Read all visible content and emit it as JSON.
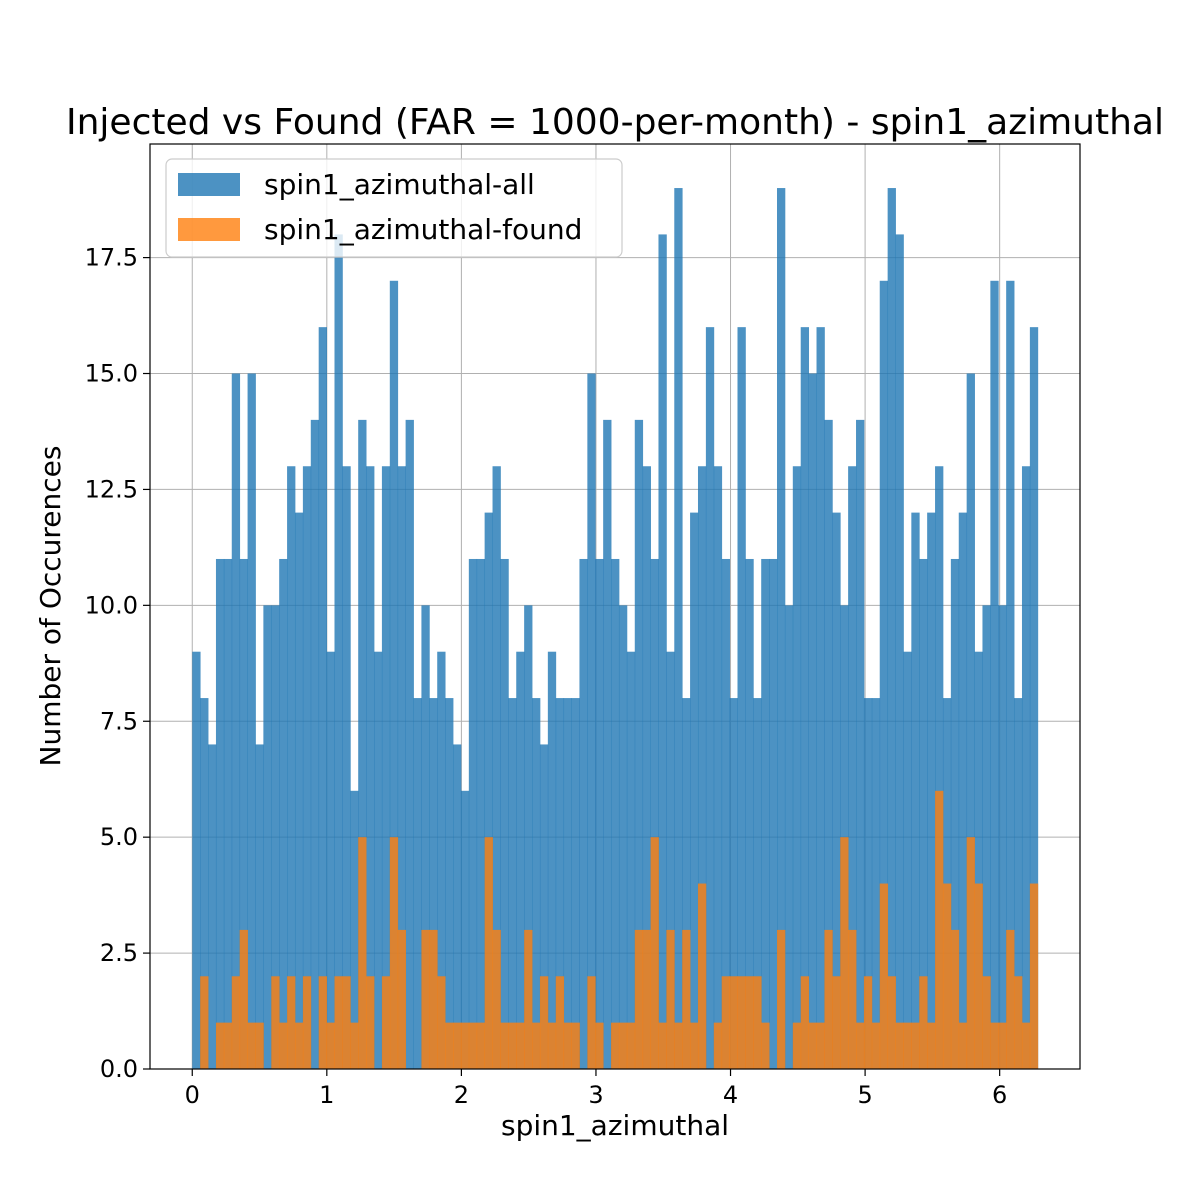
{
  "chart_data": {
    "type": "bar",
    "title": "Injected vs Found (FAR = 1000-per-month) - spin1_azimuthal",
    "xlabel": "spin1_azimuthal",
    "ylabel": "Number of Occurences",
    "xlim": [
      -0.314,
      6.597
    ],
    "ylim": [
      0,
      19.95
    ],
    "xticks": [
      0,
      1,
      2,
      3,
      4,
      5,
      6
    ],
    "xtick_labels": [
      "0",
      "1",
      "2",
      "3",
      "4",
      "5",
      "6"
    ],
    "yticks": [
      0,
      2.5,
      5,
      7.5,
      10,
      12.5,
      15,
      17.5
    ],
    "ytick_labels": [
      "0.0",
      "2.5",
      "5.0",
      "7.5",
      "10.0",
      "12.5",
      "15.0",
      "17.5"
    ],
    "grid": true,
    "legend_position": "upper-left",
    "bin_range": [
      0,
      6.2832
    ],
    "series": [
      {
        "name": "spin1_azimuthal-all",
        "color": "#1f77b4",
        "values": [
          9,
          8,
          7,
          11,
          11,
          15,
          11,
          15,
          7,
          10,
          10,
          11,
          13,
          12,
          13,
          14,
          16,
          9,
          18,
          13,
          6,
          14,
          13,
          9,
          13,
          17,
          13,
          14,
          8,
          10,
          8,
          9,
          8,
          7,
          6,
          11,
          11,
          12,
          13,
          11,
          8,
          9,
          10,
          8,
          7,
          9,
          8,
          8,
          8,
          11,
          15,
          11,
          14,
          11,
          10,
          9,
          14,
          13,
          11,
          18,
          9,
          19,
          8,
          12,
          13,
          16,
          13,
          11,
          8,
          16,
          11,
          8,
          11,
          11,
          19,
          10,
          13,
          16,
          15,
          16,
          14,
          12,
          10,
          13,
          14,
          8,
          8,
          17,
          19,
          18,
          9,
          12,
          11,
          12,
          13,
          8,
          11,
          12,
          15,
          9,
          10,
          17,
          10,
          17,
          8,
          13,
          16
        ],
        "opacity": 0.8
      },
      {
        "name": "spin1_azimuthal-found",
        "color": "#ff7f0e",
        "values": [
          0,
          2,
          0,
          1,
          1,
          2,
          3,
          1,
          1,
          0,
          2,
          1,
          2,
          1,
          2,
          0,
          2,
          1,
          2,
          2,
          1,
          5,
          2,
          0,
          2,
          5,
          3,
          0,
          0,
          3,
          3,
          2,
          1,
          1,
          1,
          1,
          1,
          5,
          3,
          1,
          1,
          1,
          3,
          1,
          2,
          1,
          2,
          1,
          1,
          0,
          2,
          1,
          0,
          1,
          1,
          1,
          3,
          3,
          5,
          1,
          3,
          1,
          3,
          1,
          4,
          0,
          1,
          2,
          2,
          2,
          2,
          2,
          1,
          0,
          3,
          0,
          1,
          2,
          1,
          1,
          3,
          2,
          5,
          3,
          1,
          2,
          1,
          4,
          2,
          1,
          1,
          1,
          2,
          1,
          6,
          4,
          3,
          1,
          5,
          4,
          2,
          1,
          1,
          3,
          2,
          1,
          4
        ],
        "opacity": 0.8
      }
    ]
  }
}
